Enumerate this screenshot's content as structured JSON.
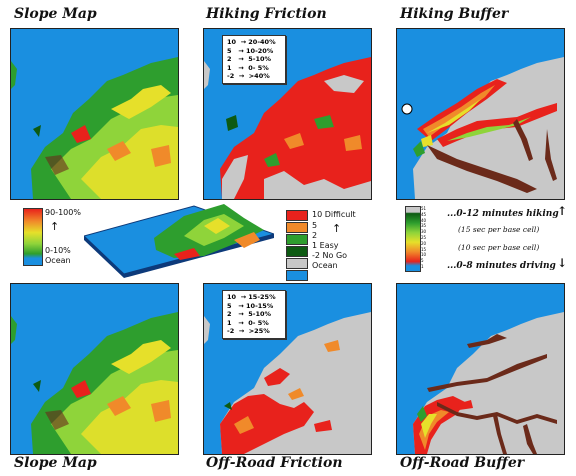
{
  "titles": {
    "top_left": "Slope Map",
    "top_mid": "Hiking Friction",
    "top_right": "Hiking Buffer",
    "bot_left": "Slope Map",
    "bot_mid": "Off-Road Friction",
    "bot_right": "Off-Road Buffer"
  },
  "hiking_friction_legend": [
    "10  → 20-40%",
    "5   → 10-20%",
    "2   →  5-10%",
    "1   →  0- 5%",
    "-2  →  >40%"
  ],
  "offroad_friction_legend": [
    "10  → 15-25%",
    "5   → 10-15%",
    "2   →  5-10%",
    "1   →  0- 5%",
    "-2  →  >25%"
  ],
  "slope_legend": {
    "top": "90-100%",
    "bottom": "0-10%",
    "ocean": "Ocean"
  },
  "friction_legend": {
    "items": [
      "10  Difficult",
      "5",
      "2",
      "1  Easy",
      "-2  No Go",
      "Ocean"
    ]
  },
  "buffer_notes": {
    "hiking": "...0-12 minutes hiking",
    "hiking_sub": "(15 sec per base cell)",
    "driving_sub": "(10 sec per base cell)",
    "driving": "...0-8 minutes driving"
  },
  "buffer_scale_labels": [
    "51",
    "45",
    "40",
    "35",
    "30",
    "25",
    "20",
    "15",
    "10",
    "5",
    "1"
  ],
  "colors": {
    "ocean": "#1a8fe0",
    "red": "#e8221c",
    "orange": "#f08a2a",
    "yellow": "#e6e02a",
    "lightgreen": "#8fd43a",
    "green": "#2e9e2e",
    "darkgreen": "#0d5a12",
    "gray": "#c8c8c8",
    "brown": "#6b2a1a"
  }
}
